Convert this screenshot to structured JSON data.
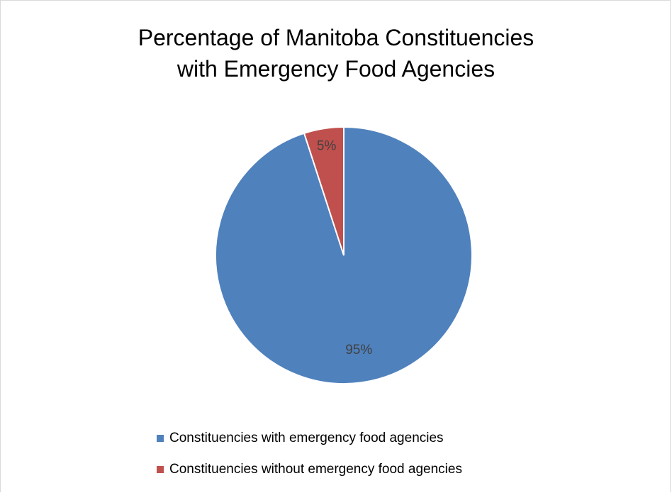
{
  "chart_data": {
    "type": "pie",
    "title_lines": [
      "Percentage of Manitoba Constituencies",
      "with Emergency Food Agencies"
    ],
    "slices": [
      {
        "name": "Constituencies with emergency food agencies",
        "value": 95,
        "label": "95%",
        "color": "#4f81bd"
      },
      {
        "name": "Constituencies without emergency food agencies",
        "value": 5,
        "label": "5%",
        "color": "#c0504d"
      }
    ],
    "legend_position": "bottom"
  }
}
